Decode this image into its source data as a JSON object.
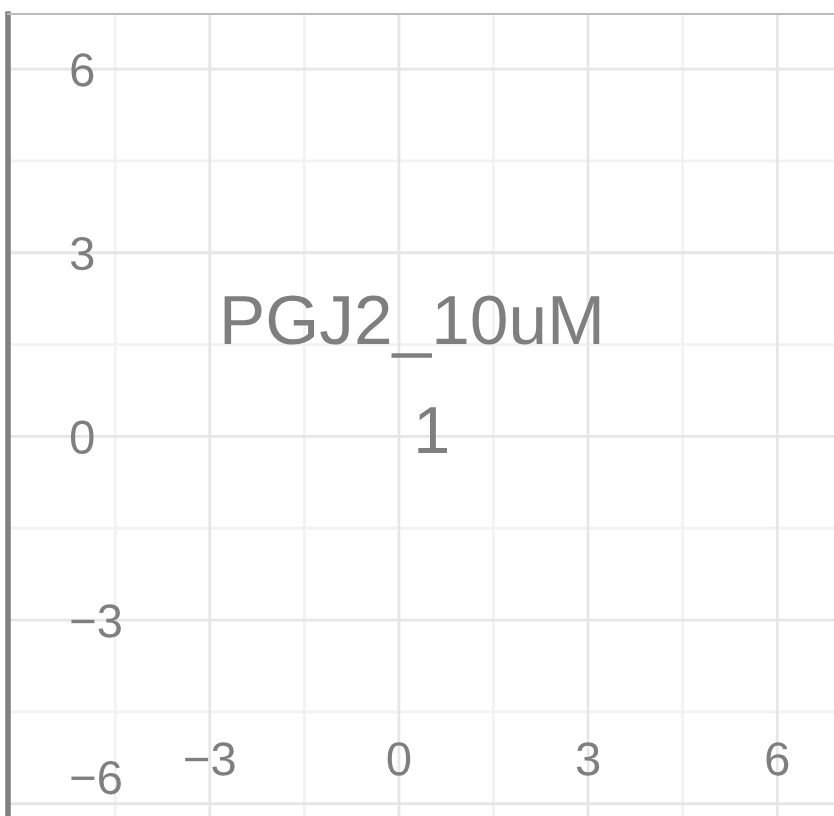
{
  "chart_data": {
    "type": "scatter",
    "xlim": [
      -6.2,
      6.9
    ],
    "ylim": [
      -6.2,
      6.9
    ],
    "xticks": [
      -3,
      0,
      3,
      6
    ],
    "yticks": [
      -6,
      -3,
      0,
      3,
      6
    ],
    "grid": true,
    "annotations": [
      "PGJ2_10uM",
      "1"
    ]
  }
}
